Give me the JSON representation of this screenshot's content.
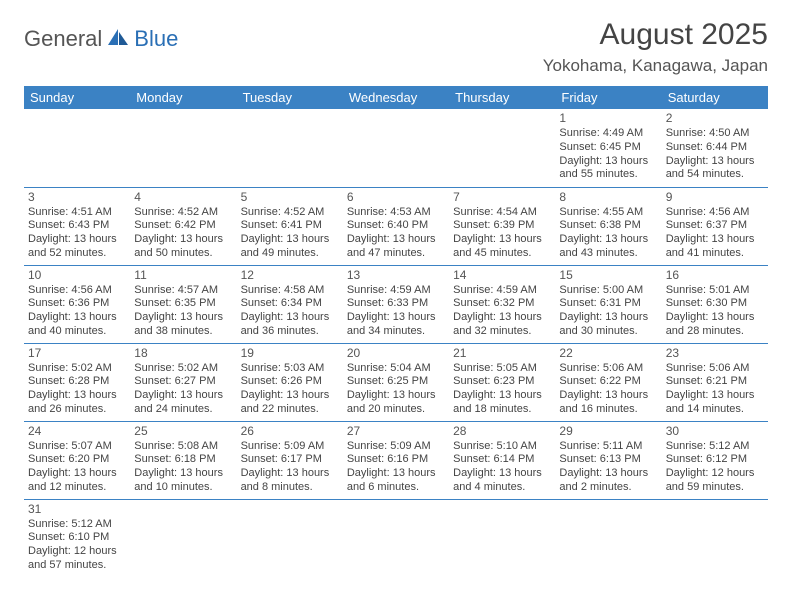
{
  "logo": {
    "part1": "General",
    "part2": "Blue"
  },
  "title": "August 2025",
  "location": "Yokohama, Kanagawa, Japan",
  "colors": {
    "header_bg": "#3b82c4",
    "header_text": "#ffffff",
    "rule": "#3b82c4",
    "text": "#444444",
    "logo_blue": "#2a6fb5"
  },
  "dayHeaders": [
    "Sunday",
    "Monday",
    "Tuesday",
    "Wednesday",
    "Thursday",
    "Friday",
    "Saturday"
  ],
  "weeks": [
    [
      null,
      null,
      null,
      null,
      null,
      {
        "n": "1",
        "sr": "Sunrise: 4:49 AM",
        "ss": "Sunset: 6:45 PM",
        "dl": "Daylight: 13 hours and 55 minutes."
      },
      {
        "n": "2",
        "sr": "Sunrise: 4:50 AM",
        "ss": "Sunset: 6:44 PM",
        "dl": "Daylight: 13 hours and 54 minutes."
      }
    ],
    [
      {
        "n": "3",
        "sr": "Sunrise: 4:51 AM",
        "ss": "Sunset: 6:43 PM",
        "dl": "Daylight: 13 hours and 52 minutes."
      },
      {
        "n": "4",
        "sr": "Sunrise: 4:52 AM",
        "ss": "Sunset: 6:42 PM",
        "dl": "Daylight: 13 hours and 50 minutes."
      },
      {
        "n": "5",
        "sr": "Sunrise: 4:52 AM",
        "ss": "Sunset: 6:41 PM",
        "dl": "Daylight: 13 hours and 49 minutes."
      },
      {
        "n": "6",
        "sr": "Sunrise: 4:53 AM",
        "ss": "Sunset: 6:40 PM",
        "dl": "Daylight: 13 hours and 47 minutes."
      },
      {
        "n": "7",
        "sr": "Sunrise: 4:54 AM",
        "ss": "Sunset: 6:39 PM",
        "dl": "Daylight: 13 hours and 45 minutes."
      },
      {
        "n": "8",
        "sr": "Sunrise: 4:55 AM",
        "ss": "Sunset: 6:38 PM",
        "dl": "Daylight: 13 hours and 43 minutes."
      },
      {
        "n": "9",
        "sr": "Sunrise: 4:56 AM",
        "ss": "Sunset: 6:37 PM",
        "dl": "Daylight: 13 hours and 41 minutes."
      }
    ],
    [
      {
        "n": "10",
        "sr": "Sunrise: 4:56 AM",
        "ss": "Sunset: 6:36 PM",
        "dl": "Daylight: 13 hours and 40 minutes."
      },
      {
        "n": "11",
        "sr": "Sunrise: 4:57 AM",
        "ss": "Sunset: 6:35 PM",
        "dl": "Daylight: 13 hours and 38 minutes."
      },
      {
        "n": "12",
        "sr": "Sunrise: 4:58 AM",
        "ss": "Sunset: 6:34 PM",
        "dl": "Daylight: 13 hours and 36 minutes."
      },
      {
        "n": "13",
        "sr": "Sunrise: 4:59 AM",
        "ss": "Sunset: 6:33 PM",
        "dl": "Daylight: 13 hours and 34 minutes."
      },
      {
        "n": "14",
        "sr": "Sunrise: 4:59 AM",
        "ss": "Sunset: 6:32 PM",
        "dl": "Daylight: 13 hours and 32 minutes."
      },
      {
        "n": "15",
        "sr": "Sunrise: 5:00 AM",
        "ss": "Sunset: 6:31 PM",
        "dl": "Daylight: 13 hours and 30 minutes."
      },
      {
        "n": "16",
        "sr": "Sunrise: 5:01 AM",
        "ss": "Sunset: 6:30 PM",
        "dl": "Daylight: 13 hours and 28 minutes."
      }
    ],
    [
      {
        "n": "17",
        "sr": "Sunrise: 5:02 AM",
        "ss": "Sunset: 6:28 PM",
        "dl": "Daylight: 13 hours and 26 minutes."
      },
      {
        "n": "18",
        "sr": "Sunrise: 5:02 AM",
        "ss": "Sunset: 6:27 PM",
        "dl": "Daylight: 13 hours and 24 minutes."
      },
      {
        "n": "19",
        "sr": "Sunrise: 5:03 AM",
        "ss": "Sunset: 6:26 PM",
        "dl": "Daylight: 13 hours and 22 minutes."
      },
      {
        "n": "20",
        "sr": "Sunrise: 5:04 AM",
        "ss": "Sunset: 6:25 PM",
        "dl": "Daylight: 13 hours and 20 minutes."
      },
      {
        "n": "21",
        "sr": "Sunrise: 5:05 AM",
        "ss": "Sunset: 6:23 PM",
        "dl": "Daylight: 13 hours and 18 minutes."
      },
      {
        "n": "22",
        "sr": "Sunrise: 5:06 AM",
        "ss": "Sunset: 6:22 PM",
        "dl": "Daylight: 13 hours and 16 minutes."
      },
      {
        "n": "23",
        "sr": "Sunrise: 5:06 AM",
        "ss": "Sunset: 6:21 PM",
        "dl": "Daylight: 13 hours and 14 minutes."
      }
    ],
    [
      {
        "n": "24",
        "sr": "Sunrise: 5:07 AM",
        "ss": "Sunset: 6:20 PM",
        "dl": "Daylight: 13 hours and 12 minutes."
      },
      {
        "n": "25",
        "sr": "Sunrise: 5:08 AM",
        "ss": "Sunset: 6:18 PM",
        "dl": "Daylight: 13 hours and 10 minutes."
      },
      {
        "n": "26",
        "sr": "Sunrise: 5:09 AM",
        "ss": "Sunset: 6:17 PM",
        "dl": "Daylight: 13 hours and 8 minutes."
      },
      {
        "n": "27",
        "sr": "Sunrise: 5:09 AM",
        "ss": "Sunset: 6:16 PM",
        "dl": "Daylight: 13 hours and 6 minutes."
      },
      {
        "n": "28",
        "sr": "Sunrise: 5:10 AM",
        "ss": "Sunset: 6:14 PM",
        "dl": "Daylight: 13 hours and 4 minutes."
      },
      {
        "n": "29",
        "sr": "Sunrise: 5:11 AM",
        "ss": "Sunset: 6:13 PM",
        "dl": "Daylight: 13 hours and 2 minutes."
      },
      {
        "n": "30",
        "sr": "Sunrise: 5:12 AM",
        "ss": "Sunset: 6:12 PM",
        "dl": "Daylight: 12 hours and 59 minutes."
      }
    ],
    [
      {
        "n": "31",
        "sr": "Sunrise: 5:12 AM",
        "ss": "Sunset: 6:10 PM",
        "dl": "Daylight: 12 hours and 57 minutes."
      },
      null,
      null,
      null,
      null,
      null,
      null
    ]
  ]
}
